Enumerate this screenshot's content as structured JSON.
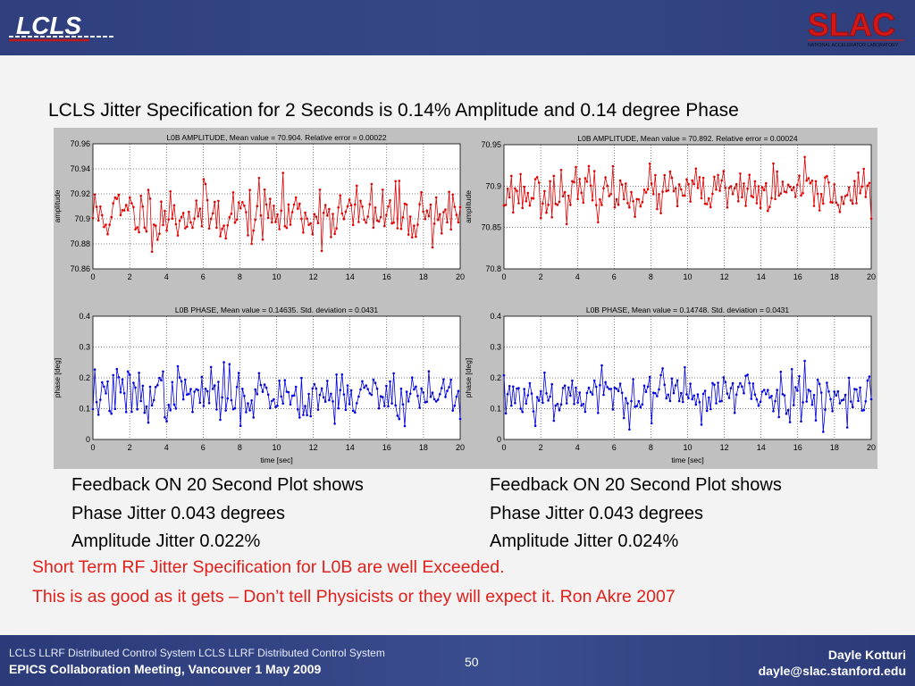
{
  "header": {
    "lcls_logo_text": "LCLS",
    "slac_logo_text": "SLAC",
    "slac_subtitle": "NATIONAL ACCELERATOR LABORATORY"
  },
  "title": "LCLS Jitter Specification for 2 Seconds is 0.14% Amplitude and 0.14 degree Phase",
  "captions": {
    "left": [
      "Feedback ON 20 Second Plot shows",
      "Phase Jitter 0.043 degrees",
      "Amplitude Jitter 0.022%"
    ],
    "right": [
      "Feedback ON 20 Second Plot shows",
      "Phase Jitter 0.043 degrees",
      "Amplitude Jitter 0.024%"
    ]
  },
  "notes": [
    "Short Term RF Jitter Specification for L0B are well Exceeded.",
    "This is as good as it gets – Don’t tell Physicists or they will expect it. Ron Akre 2007"
  ],
  "footer": {
    "line1": "LCLS LLRF Distributed Control System LCLS LLRF Distributed Control System",
    "line2": "EPICS Collaboration Meeting, Vancouver 1 May 2009",
    "page": "50",
    "author": "Dayle Kotturi",
    "email": "dayle@slac.stanford.edu"
  },
  "colors": {
    "amplitude_series": "#e00000",
    "phase_series": "#0000e0",
    "note_text": "#e0201b",
    "header_bg": "#34457f"
  },
  "chart_data": [
    {
      "type": "line",
      "title": "L0B AMPLITUDE, Mean value = 70.904. Relative error = 0.00022",
      "xlabel": "",
      "ylabel": "amplitude",
      "xlim": [
        0,
        20
      ],
      "ylim": [
        70.86,
        70.96
      ],
      "xticks": [
        0,
        2,
        4,
        6,
        8,
        10,
        12,
        14,
        16,
        18,
        20
      ],
      "xtick_labels": [
        "0",
        "2",
        "4",
        "6",
        "8",
        "10",
        "12",
        "14",
        "16",
        "18",
        "20"
      ],
      "yticks": [
        70.86,
        70.88,
        70.9,
        70.92,
        70.94,
        70.96
      ],
      "ytick_labels": [
        "70.86",
        "70.88",
        "70.9",
        "70.92",
        "70.94",
        "70.96"
      ],
      "grid": true,
      "series": [
        {
          "color": "#e00000",
          "mean": 70.904,
          "spread": 0.012,
          "points": 200,
          "seed": 11
        }
      ]
    },
    {
      "type": "line",
      "title": "L0B AMPLITUDE, Mean value = 70.892. Relative error = 0.00024",
      "xlabel": "",
      "ylabel": "amplitude",
      "xlim": [
        0,
        20
      ],
      "ylim": [
        70.8,
        70.95
      ],
      "xticks": [
        0,
        2,
        4,
        6,
        8,
        10,
        12,
        14,
        16,
        18,
        20
      ],
      "xtick_labels": [
        "0",
        "2",
        "4",
        "6",
        "8",
        "10",
        "12",
        "14",
        "16",
        "18",
        "20"
      ],
      "yticks": [
        70.8,
        70.85,
        70.9,
        70.95
      ],
      "ytick_labels": [
        "70.8",
        "70.85",
        "70.9",
        "70.95"
      ],
      "grid": true,
      "series": [
        {
          "color": "#e00000",
          "mean": 70.892,
          "spread": 0.014,
          "points": 200,
          "seed": 23
        }
      ]
    },
    {
      "type": "line",
      "title": "L0B PHASE, Mean value = 0.14635. Std. deviation = 0.0431",
      "xlabel": "time [sec]",
      "ylabel": "phase [deg]",
      "xlim": [
        0,
        20
      ],
      "ylim": [
        0,
        0.4
      ],
      "xticks": [
        0,
        2,
        4,
        6,
        8,
        10,
        12,
        14,
        16,
        18,
        20
      ],
      "xtick_labels": [
        "0",
        "2",
        "4",
        "6",
        "8",
        "10",
        "12",
        "14",
        "16",
        "18",
        "20"
      ],
      "yticks": [
        0,
        0.1,
        0.2,
        0.3,
        0.4
      ],
      "ytick_labels": [
        "0",
        "0.1",
        "0.2",
        "0.3",
        "0.4"
      ],
      "grid": true,
      "series": [
        {
          "color": "#0000e0",
          "mean": 0.146,
          "spread": 0.043,
          "points": 200,
          "seed": 37
        }
      ]
    },
    {
      "type": "line",
      "title": "L0B PHASE, Mean value = 0.14748. Std. deviation = 0.0431",
      "xlabel": "time [sec]",
      "ylabel": "phase [deg]",
      "xlim": [
        0,
        20
      ],
      "ylim": [
        0,
        0.4
      ],
      "xticks": [
        0,
        2,
        4,
        6,
        8,
        10,
        12,
        14,
        16,
        18,
        20
      ],
      "xtick_labels": [
        "0",
        "2",
        "4",
        "6",
        "8",
        "10",
        "12",
        "14",
        "16",
        "18",
        "20"
      ],
      "yticks": [
        0,
        0.1,
        0.2,
        0.3,
        0.4
      ],
      "ytick_labels": [
        "0",
        "0.1",
        "0.2",
        "0.3",
        "0.4"
      ],
      "grid": true,
      "series": [
        {
          "color": "#0000e0",
          "mean": 0.147,
          "spread": 0.043,
          "points": 200,
          "seed": 53
        }
      ]
    }
  ]
}
